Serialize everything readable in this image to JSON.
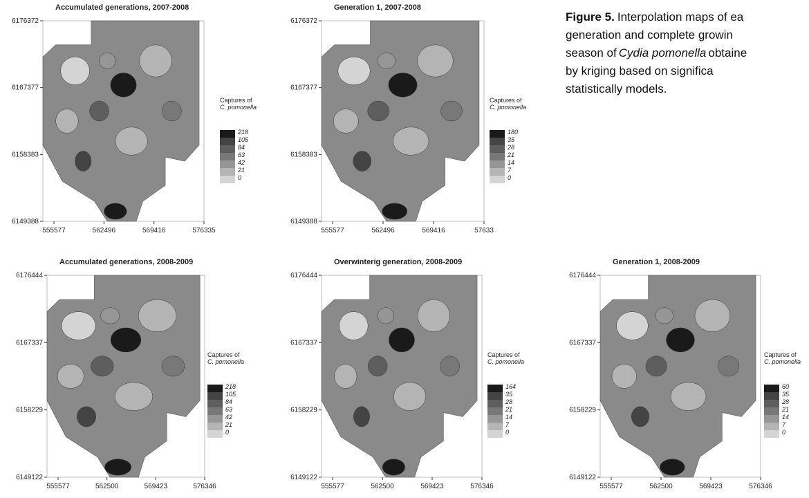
{
  "caption": {
    "label": "Figure 5.",
    "lines": [
      "Interpolation maps of ea",
      "generation and complete growin",
      "season of",
      "Cydia pomonella",
      "obtaine",
      "by kriging based on significa",
      "statistically models."
    ]
  },
  "panels": [
    {
      "title": "Accumulated generations, 2007-2008",
      "y_ticks": [
        "6176372",
        "6167377",
        "6158383",
        "6149388"
      ],
      "x_ticks": [
        "555577",
        "562496",
        "569416",
        "576335"
      ],
      "legend": {
        "title": [
          "Captures of",
          "C. pomonella"
        ],
        "labels": [
          "218",
          "105",
          "84",
          "63",
          "42",
          "21",
          "0"
        ]
      }
    },
    {
      "title": "Generation 1, 2007-2008",
      "y_ticks": [
        "6176372",
        "6167377",
        "6158383",
        "6149388"
      ],
      "x_ticks": [
        "555577",
        "562496",
        "569416",
        "57633"
      ],
      "legend": {
        "title": [
          "Captures of",
          "C. pomonella"
        ],
        "labels": [
          "180",
          "35",
          "28",
          "21",
          "14",
          "7",
          "0"
        ]
      }
    },
    {
      "title": "Accumulated generations, 2008-2009",
      "y_ticks": [
        "6176444",
        "6167337",
        "6158229",
        "6149122"
      ],
      "x_ticks": [
        "555577",
        "562500",
        "569423",
        "576346"
      ],
      "legend": {
        "title": [
          "Captures of",
          "C. pomonella"
        ],
        "labels": [
          "218",
          "105",
          "84",
          "63",
          "42",
          "21",
          "0"
        ]
      }
    },
    {
      "title": "Overwinterig generation, 2008-2009",
      "y_ticks": [
        "6176444",
        "6167337",
        "6158229",
        "6149122"
      ],
      "x_ticks": [
        "555577",
        "562500",
        "569423",
        "576346"
      ],
      "legend": {
        "title": [
          "Captures of",
          "C. pomonella"
        ],
        "labels": [
          "164",
          "35",
          "28",
          "21",
          "14",
          "7",
          "0"
        ]
      }
    },
    {
      "title": "Generation 1, 2008-2009",
      "y_ticks": [
        "6176444",
        "6167337",
        "6158229",
        "6149122"
      ],
      "x_ticks": [
        "555577",
        "562500",
        "569423",
        "576346"
      ],
      "legend": {
        "title": [
          "Captures of",
          "C. pomonella"
        ],
        "labels": [
          "60",
          "35",
          "28",
          "21",
          "14",
          "7",
          "0"
        ]
      }
    }
  ]
}
